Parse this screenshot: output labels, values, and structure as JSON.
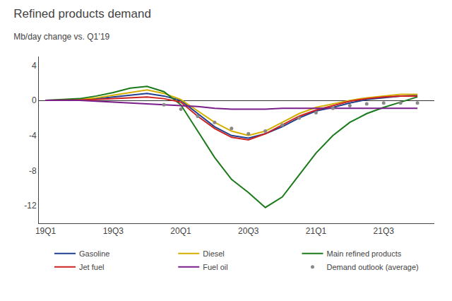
{
  "chart_data": {
    "type": "line",
    "title": "Refined products demand",
    "subtitle": "Mb/day change vs. Q1’19",
    "xlim": [
      -0.2,
      11.5
    ],
    "xticks": [
      {
        "value": 0,
        "label": "19Q1"
      },
      {
        "value": 2,
        "label": "19Q3"
      },
      {
        "value": 4,
        "label": "20Q1"
      },
      {
        "value": 6,
        "label": "20Q3"
      },
      {
        "value": 8,
        "label": "21Q1"
      },
      {
        "value": 10,
        "label": "21Q3"
      }
    ],
    "ylim": [
      -14,
      5
    ],
    "yticks": [
      -12,
      -8,
      -4,
      0,
      4
    ],
    "grid": false,
    "legend": "bottom",
    "series": [
      {
        "name": "Gasoline",
        "color": "#1f3f8f",
        "line_style": "solid",
        "x": [
          0,
          0.5,
          1,
          1.5,
          2,
          2.5,
          3,
          3.5,
          4,
          4.5,
          5,
          5.5,
          6,
          6.5,
          7,
          7.5,
          8,
          8.5,
          9,
          9.5,
          10,
          10.5,
          11
        ],
        "values": [
          0,
          0,
          0.1,
          0.2,
          0.4,
          0.6,
          0.8,
          0.5,
          0.0,
          -1.5,
          -3.0,
          -4.0,
          -4.3,
          -3.8,
          -3.0,
          -2.0,
          -1.2,
          -0.8,
          -0.3,
          0.1,
          0.3,
          0.5,
          0.6
        ]
      },
      {
        "name": "Diesel",
        "color": "#d4af00",
        "line_style": "solid",
        "x": [
          0,
          0.5,
          1,
          1.5,
          2,
          2.5,
          3,
          3.5,
          4,
          4.5,
          5,
          5.5,
          6,
          6.5,
          7,
          7.5,
          8,
          8.5,
          9,
          9.5,
          10,
          10.5,
          11
        ],
        "values": [
          0,
          0.0,
          0.1,
          0.3,
          0.6,
          0.9,
          1.2,
          0.8,
          0.1,
          -1.2,
          -2.5,
          -3.5,
          -4.0,
          -3.5,
          -2.5,
          -1.5,
          -0.8,
          -0.4,
          0.0,
          0.3,
          0.5,
          0.7,
          0.7
        ]
      },
      {
        "name": "Main refined products",
        "color": "#1a7a1a",
        "line_style": "solid",
        "x": [
          0,
          0.5,
          1,
          1.5,
          2,
          2.5,
          3,
          3.5,
          4,
          4.5,
          5,
          5.5,
          6,
          6.5,
          7,
          7.5,
          8,
          8.5,
          9,
          9.5,
          10,
          10.5,
          11
        ],
        "values": [
          0,
          0.1,
          0.2,
          0.5,
          0.9,
          1.4,
          1.6,
          1.0,
          -0.5,
          -3.5,
          -6.5,
          -9.0,
          -10.5,
          -12.2,
          -11.0,
          -8.5,
          -6.0,
          -4.0,
          -2.5,
          -1.5,
          -0.8,
          -0.2,
          0.4
        ]
      },
      {
        "name": "Jet fuel",
        "color": "#cc2222",
        "line_style": "solid",
        "x": [
          0,
          0.5,
          1,
          1.5,
          2,
          2.5,
          3,
          3.5,
          4,
          4.5,
          5,
          5.5,
          6,
          6.5,
          7,
          7.5,
          8,
          8.5,
          9,
          9.5,
          10,
          10.5,
          11
        ],
        "values": [
          0,
          0.0,
          0.05,
          0.1,
          0.2,
          0.3,
          0.4,
          0.2,
          -0.2,
          -1.8,
          -3.2,
          -4.2,
          -4.5,
          -3.8,
          -2.8,
          -1.8,
          -1.1,
          -0.6,
          -0.1,
          0.2,
          0.4,
          0.5,
          0.5
        ]
      },
      {
        "name": "Fuel oil",
        "color": "#7a1f8a",
        "line_style": "solid",
        "x": [
          0,
          0.5,
          1,
          1.5,
          2,
          2.5,
          3,
          3.5,
          4,
          4.5,
          5,
          5.5,
          6,
          6.5,
          7,
          7.5,
          8,
          8.5,
          9,
          9.5,
          10,
          10.5,
          11
        ],
        "values": [
          0,
          0.0,
          0.0,
          -0.1,
          -0.2,
          -0.3,
          -0.4,
          -0.5,
          -0.6,
          -0.7,
          -0.9,
          -1.0,
          -1.0,
          -1.0,
          -0.9,
          -0.9,
          -0.9,
          -0.9,
          -0.9,
          -0.9,
          -0.9,
          -0.9,
          -0.9
        ]
      },
      {
        "name": "Demand outlook (average)",
        "color": "#888888",
        "line_style": "none",
        "marker": "circle",
        "x": [
          3.5,
          4,
          4.5,
          5,
          5.5,
          6,
          6.5,
          7,
          7.5,
          8,
          8.5,
          9,
          9.5,
          10,
          10.5,
          11
        ],
        "values": [
          -0.5,
          -1.0,
          -1.8,
          -2.5,
          -3.2,
          -3.8,
          -3.5,
          -2.8,
          -2.0,
          -1.4,
          -0.9,
          -0.6,
          -0.4,
          -0.3,
          -0.3,
          -0.3
        ]
      }
    ]
  }
}
